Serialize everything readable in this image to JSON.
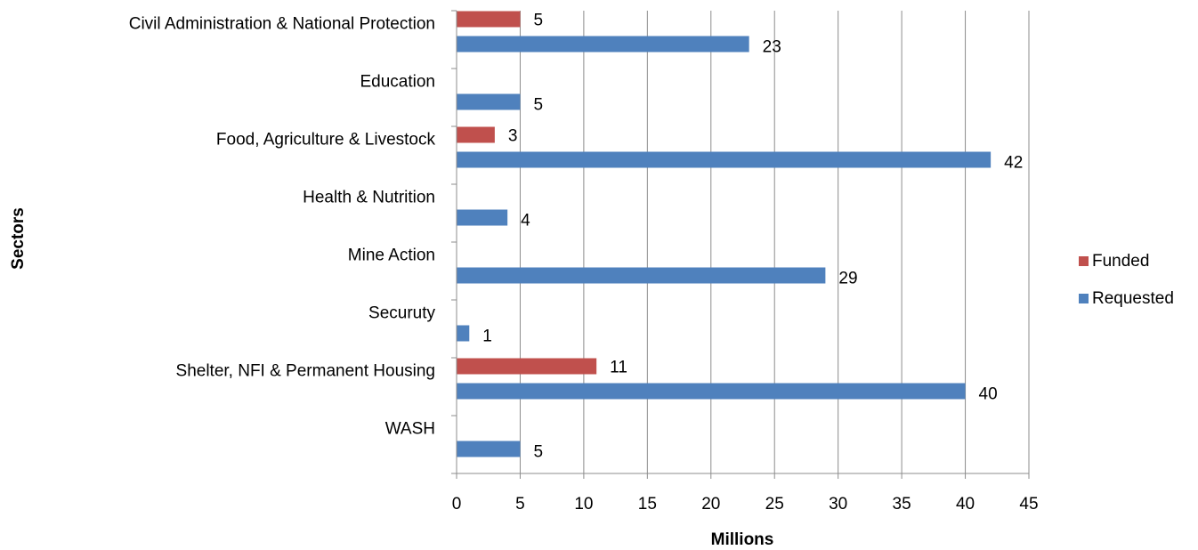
{
  "chart_data": {
    "type": "bar",
    "orientation": "horizontal",
    "categories": [
      "Civil Administration & National Protection",
      "Education",
      "Food, Agriculture & Livestock",
      "Health & Nutrition",
      "Mine Action",
      "Securuty",
      "Shelter, NFI & Permanent Housing",
      "WASH"
    ],
    "series": [
      {
        "name": "Funded",
        "color": "#C0504D",
        "values": [
          5,
          null,
          3,
          null,
          null,
          null,
          11,
          null
        ]
      },
      {
        "name": "Requested",
        "color": "#4F81BD",
        "values": [
          23,
          5,
          42,
          4,
          29,
          1,
          40,
          5
        ]
      }
    ],
    "xlabel": "Millions",
    "ylabel": "Sectors",
    "xlim": [
      0,
      45
    ],
    "xticks": [
      0,
      5,
      10,
      15,
      20,
      25,
      30,
      35,
      40,
      45
    ],
    "grid": "vertical",
    "legend_position": "right"
  }
}
